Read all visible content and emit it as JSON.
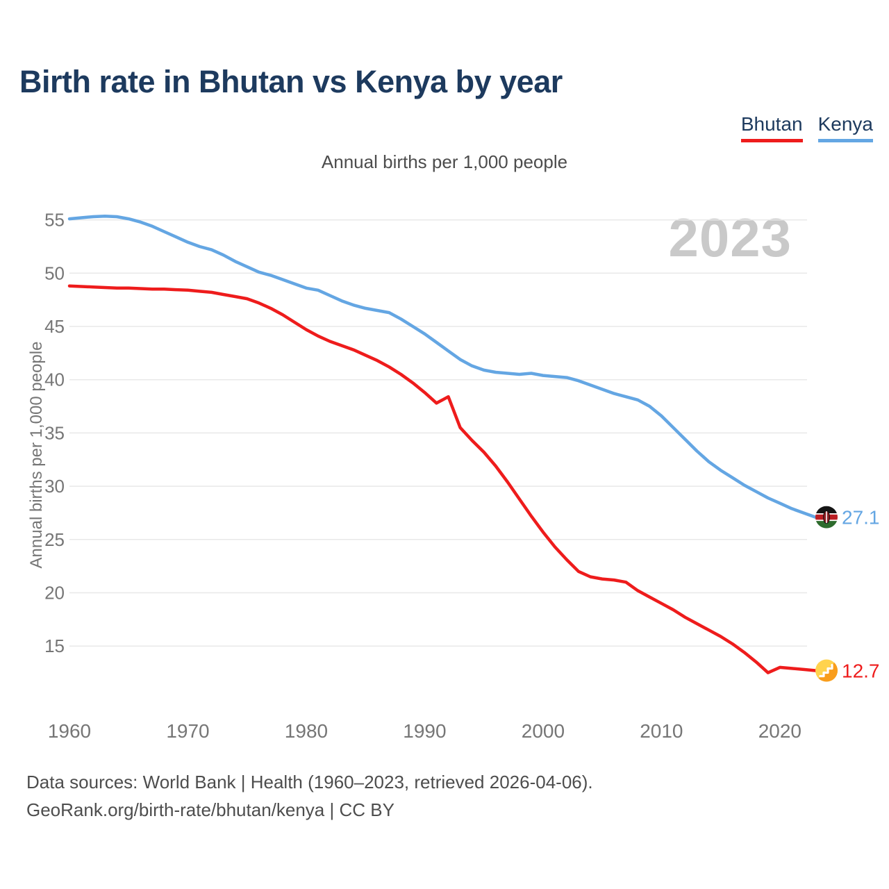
{
  "chart_data": {
    "type": "line",
    "title": "Birth rate in Bhutan vs Kenya by year",
    "subtitle": "Annual births per 1,000 people",
    "ylabel": "Annual births per 1,000 people",
    "watermark": "2023",
    "grid": "horizontal",
    "legend_position": "top-right",
    "x_ticks": [
      1960,
      1970,
      1980,
      1990,
      2000,
      2010,
      2020
    ],
    "y_ticks": [
      15,
      20,
      25,
      30,
      35,
      40,
      45,
      50,
      55
    ],
    "ylim": [
      12,
      57
    ],
    "x": [
      1960,
      1961,
      1962,
      1963,
      1964,
      1965,
      1966,
      1967,
      1968,
      1969,
      1970,
      1971,
      1972,
      1973,
      1974,
      1975,
      1976,
      1977,
      1978,
      1979,
      1980,
      1981,
      1982,
      1983,
      1984,
      1985,
      1986,
      1987,
      1988,
      1989,
      1990,
      1991,
      1992,
      1993,
      1994,
      1995,
      1996,
      1997,
      1998,
      1999,
      2000,
      2001,
      2002,
      2003,
      2004,
      2005,
      2006,
      2007,
      2008,
      2009,
      2010,
      2011,
      2012,
      2013,
      2014,
      2015,
      2016,
      2017,
      2018,
      2019,
      2020,
      2021,
      2022,
      2023
    ],
    "series": [
      {
        "name": "Bhutan",
        "color": "#ee1c1c",
        "flag": "bhutan-flag-icon",
        "end_label": "12.7",
        "values": [
          48.8,
          48.75,
          48.7,
          48.65,
          48.6,
          48.6,
          48.55,
          48.5,
          48.5,
          48.45,
          48.4,
          48.3,
          48.2,
          48.0,
          47.8,
          47.6,
          47.2,
          46.7,
          46.1,
          45.4,
          44.7,
          44.1,
          43.6,
          43.2,
          42.8,
          42.3,
          41.8,
          41.2,
          40.5,
          39.7,
          38.8,
          37.8,
          38.4,
          35.5,
          34.3,
          33.2,
          31.9,
          30.4,
          28.8,
          27.2,
          25.7,
          24.3,
          23.1,
          22.0,
          21.5,
          21.3,
          21.2,
          21.0,
          20.2,
          19.6,
          19.0,
          18.4,
          17.7,
          17.1,
          16.5,
          15.9,
          15.2,
          14.4,
          13.5,
          12.5,
          13.0,
          12.9,
          12.8,
          12.7
        ]
      },
      {
        "name": "Kenya",
        "color": "#64a6e3",
        "flag": "kenya-flag-icon",
        "end_label": "27.1",
        "values": [
          55.1,
          55.2,
          55.3,
          55.35,
          55.3,
          55.1,
          54.8,
          54.4,
          53.9,
          53.4,
          52.9,
          52.5,
          52.2,
          51.7,
          51.1,
          50.6,
          50.1,
          49.8,
          49.4,
          49.0,
          48.6,
          48.4,
          47.9,
          47.4,
          47.0,
          46.7,
          46.5,
          46.3,
          45.7,
          45.0,
          44.3,
          43.5,
          42.7,
          41.9,
          41.3,
          40.9,
          40.7,
          40.6,
          40.5,
          40.6,
          40.4,
          40.3,
          40.2,
          39.9,
          39.5,
          39.1,
          38.7,
          38.4,
          38.1,
          37.5,
          36.6,
          35.5,
          34.4,
          33.3,
          32.3,
          31.5,
          30.8,
          30.1,
          29.5,
          28.9,
          28.4,
          27.9,
          27.5,
          27.1
        ]
      }
    ]
  },
  "footer": {
    "line1": "Data sources: World Bank | Health (1960–2023, retrieved 2026-04-06).",
    "line2": "GeoRank.org/birth-rate/bhutan/kenya | CC BY"
  },
  "colors": {
    "title_navy": "#1d3a5e",
    "bhutan_red": "#ee1c1c",
    "kenya_blue": "#64a6e3",
    "tick_gray": "#767676",
    "grid_gray": "#e8e8e8",
    "subtitle_gray": "#4c4c4c",
    "footer_gray": "#4d4d4d",
    "watermark_gray": "#c9c9c9",
    "background": "#ffffff"
  }
}
